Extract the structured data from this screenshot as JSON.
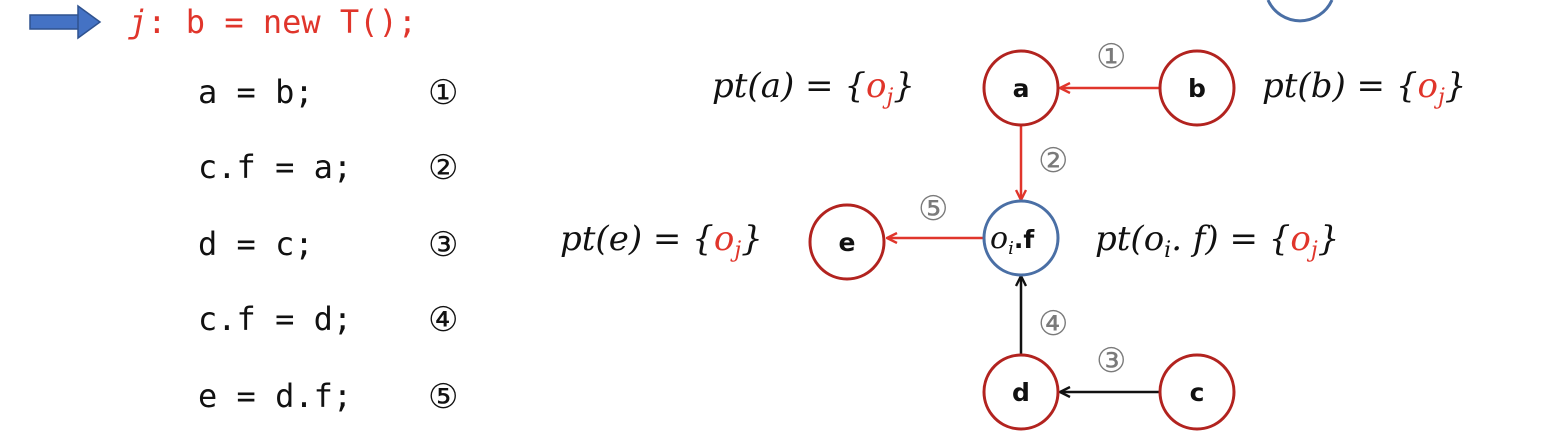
{
  "code": {
    "alloc_label": "j",
    "alloc_rest": ": b = new T();",
    "statements": [
      {
        "text": "a = b;",
        "num": "①"
      },
      {
        "text": "c.f = a;",
        "num": "②"
      },
      {
        "text": "d = c;",
        "num": "③"
      },
      {
        "text": "c.f = d;",
        "num": "④"
      },
      {
        "text": "e = d.f;",
        "num": "⑤"
      }
    ]
  },
  "graph": {
    "nodes": {
      "a": "a",
      "b": "b",
      "c": "c",
      "d": "d",
      "e": "e",
      "of_base": "o",
      "of_sub": "i",
      "of_field": ".f"
    },
    "edge_labels": {
      "e1": "①",
      "e2": "②",
      "e3": "③",
      "e4": "④",
      "e5": "⑤"
    },
    "points_to": {
      "a_lhs": "pt(a) = {",
      "b_lhs": "pt(b) = {",
      "e_lhs": "pt(e) = {",
      "of_lhs_1": "pt(o",
      "of_lhs_sub": "i",
      "of_lhs_2": ". f) = {",
      "obj_base": "o",
      "obj_sub": "j",
      "close": "}"
    }
  },
  "colors": {
    "red": "#e0352b",
    "dark_red_node": "#b2231f",
    "blue_node": "#4a6fa5",
    "arrow_blue": "#4472c4",
    "black": "#111111"
  }
}
